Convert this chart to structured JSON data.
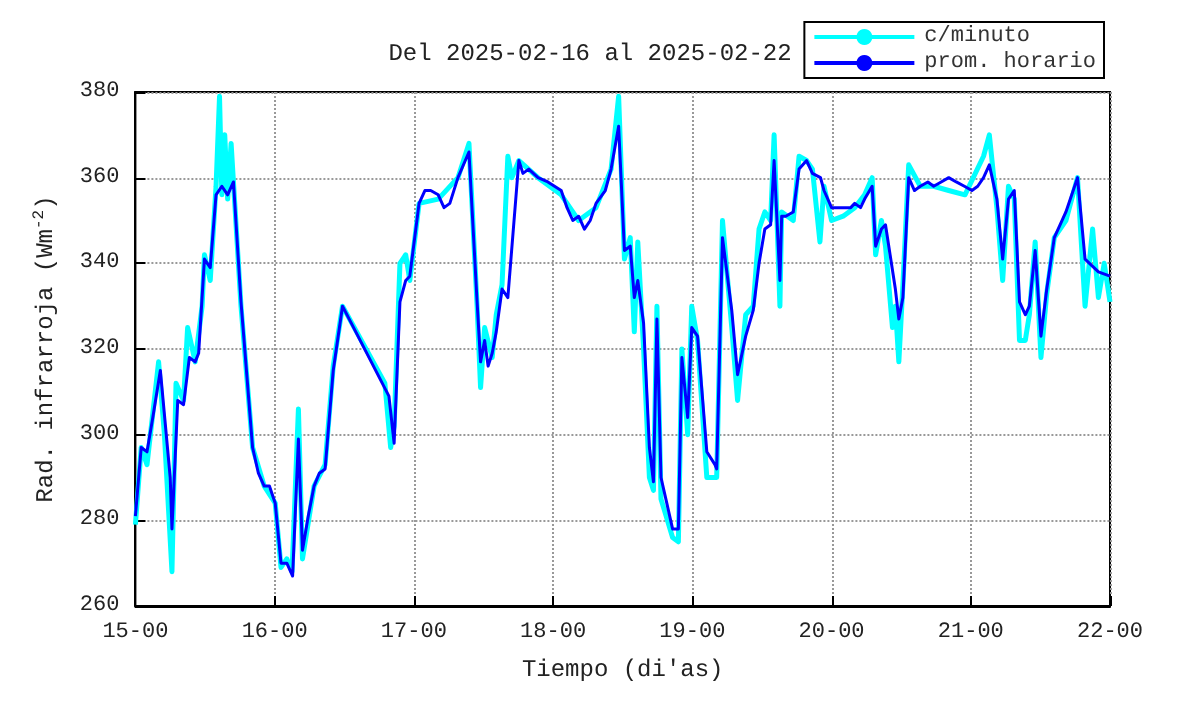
{
  "chart_data": {
    "type": "line",
    "title": "Del 2025-02-16 al 2025-02-22",
    "xlabel": "Tiempo (di'as)",
    "ylabel": "Rad. infrarroja (Wm$^{-2}$)",
    "xlim": [
      "2025-02-15T00:00",
      "2025-02-22T00:00"
    ],
    "xticks": [
      {
        "value": "2025-02-15T00:00",
        "label": "15-00"
      },
      {
        "value": "2025-02-16T00:00",
        "label": "16-00"
      },
      {
        "value": "2025-02-17T00:00",
        "label": "17-00"
      },
      {
        "value": "2025-02-18T00:00",
        "label": "18-00"
      },
      {
        "value": "2025-02-19T00:00",
        "label": "19-00"
      },
      {
        "value": "2025-02-20T00:00",
        "label": "20-00"
      },
      {
        "value": "2025-02-21T00:00",
        "label": "21-00"
      },
      {
        "value": "2025-02-22T00:00",
        "label": "22-00"
      }
    ],
    "ylim": [
      260,
      380
    ],
    "yticks": [
      260,
      280,
      300,
      320,
      340,
      360,
      380
    ],
    "grid": true,
    "legend": "top right",
    "marker": "none",
    "line_style": "solid",
    "series": [
      {
        "name": "c/minuto",
        "color": "#00ffff",
        "x": [
          "2025-02-15T00:00",
          "2025-02-15T01:00",
          "2025-02-15T02:00",
          "2025-02-15T03:00",
          "2025-02-15T04:00",
          "2025-02-15T05:00",
          "2025-02-15T06:18",
          "2025-02-15T07:00",
          "2025-02-15T08:18",
          "2025-02-15T09:00",
          "2025-02-15T10:18",
          "2025-02-15T11:30",
          "2025-02-15T11:54",
          "2025-02-15T12:54",
          "2025-02-15T13:54",
          "2025-02-15T14:30",
          "2025-02-15T14:54",
          "2025-02-15T15:24",
          "2025-02-15T15:54",
          "2025-02-15T16:30",
          "2025-02-15T16:54",
          "2025-02-15T18:12",
          "2025-02-15T20:12",
          "2025-02-15T22:12",
          "2025-02-16T00:06",
          "2025-02-16T01:06",
          "2025-02-16T02:06",
          "2025-02-16T03:00",
          "2025-02-16T04:06",
          "2025-02-16T04:48",
          "2025-02-16T06:48",
          "2025-02-16T08:42",
          "2025-02-16T10:06",
          "2025-02-16T11:42",
          "2025-02-16T19:00",
          "2025-02-16T20:00",
          "2025-02-16T20:36",
          "2025-02-16T21:36",
          "2025-02-16T22:36",
          "2025-02-16T23:18",
          "2025-02-17T00:54",
          "2025-02-17T04:12",
          "2025-02-17T07:36",
          "2025-02-17T09:30",
          "2025-02-17T10:54",
          "2025-02-17T11:30",
          "2025-02-17T12:12",
          "2025-02-17T13:30",
          "2025-02-17T14:12",
          "2025-02-17T15:12",
          "2025-02-17T16:12",
          "2025-02-17T16:54",
          "2025-02-17T18:06",
          "2025-02-17T21:24",
          "2025-02-18T01:24",
          "2025-02-18T04:24",
          "2025-02-18T07:24",
          "2025-02-18T10:00",
          "2025-02-18T11:18",
          "2025-02-18T12:18",
          "2025-02-18T13:18",
          "2025-02-18T14:00",
          "2025-02-18T14:36",
          "2025-02-18T15:36",
          "2025-02-18T16:36",
          "2025-02-18T17:18",
          "2025-02-18T17:54",
          "2025-02-18T18:36",
          "2025-02-18T20:36",
          "2025-02-18T21:36",
          "2025-02-18T22:12",
          "2025-02-18T23:12",
          "2025-02-18T23:54",
          "2025-02-19T00:54",
          "2025-02-19T02:30",
          "2025-02-19T04:12",
          "2025-02-19T05:12",
          "2025-02-19T06:48",
          "2025-02-19T07:48",
          "2025-02-19T09:12",
          "2025-02-19T10:30",
          "2025-02-19T11:30",
          "2025-02-19T12:30",
          "2025-02-19T13:30",
          "2025-02-19T14:06",
          "2025-02-19T15:06",
          "2025-02-19T15:24",
          "2025-02-19T17:24",
          "2025-02-19T18:24",
          "2025-02-19T19:42",
          "2025-02-19T20:42",
          "2025-02-19T22:00",
          "2025-02-19T22:42",
          "2025-02-20T00:00",
          "2025-02-20T02:00",
          "2025-02-20T04:00",
          "2025-02-20T05:42",
          "2025-02-20T07:00",
          "2025-02-20T07:36",
          "2025-02-20T08:36",
          "2025-02-20T09:18",
          "2025-02-20T10:30",
          "2025-02-20T11:00",
          "2025-02-20T11:36",
          "2025-02-20T12:18",
          "2025-02-20T13:18",
          "2025-02-20T15:18",
          "2025-02-20T17:36",
          "2025-02-20T20:12",
          "2025-02-20T23:00",
          "2025-02-21T02:12",
          "2025-02-21T03:12",
          "2025-02-21T04:30",
          "2025-02-21T05:30",
          "2025-02-21T06:30",
          "2025-02-21T07:30",
          "2025-02-21T08:24",
          "2025-02-21T09:24",
          "2025-02-21T10:06",
          "2025-02-21T11:06",
          "2025-02-21T12:06",
          "2025-02-21T13:06",
          "2025-02-21T14:24",
          "2025-02-21T16:24",
          "2025-02-21T18:24",
          "2025-02-21T19:42",
          "2025-02-21T21:00",
          "2025-02-21T22:00",
          "2025-02-21T23:00",
          "2025-02-22T00:00"
        ],
        "values": [
          279,
          297,
          293,
          305,
          317,
          300,
          268,
          312,
          308,
          325,
          317,
          330,
          342,
          336,
          358,
          379,
          356,
          370,
          355,
          368,
          359,
          330,
          297,
          288,
          284,
          269,
          271,
          268,
          306,
          271,
          288,
          293,
          316,
          330,
          312,
          297,
          302,
          340,
          342,
          336,
          354,
          355,
          360,
          368,
          330,
          311,
          325,
          318,
          328,
          335,
          365,
          360,
          364,
          360,
          356,
          350,
          353,
          362,
          379,
          341,
          346,
          324,
          345,
          320,
          290,
          287,
          330,
          285,
          276,
          275,
          320,
          300,
          330,
          322,
          290,
          290,
          350,
          325,
          308,
          328,
          330,
          348,
          352,
          350,
          370,
          330,
          352,
          350,
          365,
          364,
          362,
          345,
          358,
          350,
          351,
          353,
          356,
          360,
          342,
          350,
          344,
          325,
          330,
          317,
          335,
          363,
          358,
          358,
          357,
          356,
          365,
          370,
          353,
          336,
          358,
          355,
          322,
          322,
          328,
          345,
          318,
          333,
          346,
          350,
          360,
          330,
          348,
          332,
          340,
          331
        ]
      },
      {
        "name": "prom. horario",
        "color": "#0000ff",
        "x": [
          "2025-02-15T00:00",
          "2025-02-15T01:00",
          "2025-02-15T02:00",
          "2025-02-15T03:00",
          "2025-02-15T04:18",
          "2025-02-15T06:00",
          "2025-02-15T06:18",
          "2025-02-15T07:18",
          "2025-02-15T08:18",
          "2025-02-15T09:18",
          "2025-02-15T10:18",
          "2025-02-15T10:54",
          "2025-02-15T11:54",
          "2025-02-15T12:54",
          "2025-02-15T13:54",
          "2025-02-15T14:54",
          "2025-02-15T15:54",
          "2025-02-15T16:54",
          "2025-02-15T18:12",
          "2025-02-15T20:12",
          "2025-02-15T21:12",
          "2025-02-15T22:12",
          "2025-02-15T23:06",
          "2025-02-16T00:06",
          "2025-02-16T01:06",
          "2025-02-16T02:06",
          "2025-02-16T03:06",
          "2025-02-16T04:06",
          "2025-02-16T04:48",
          "2025-02-16T05:48",
          "2025-02-16T06:48",
          "2025-02-16T07:42",
          "2025-02-16T08:42",
          "2025-02-16T10:06",
          "2025-02-16T11:42",
          "2025-02-16T19:42",
          "2025-02-16T20:36",
          "2025-02-16T21:36",
          "2025-02-16T22:36",
          "2025-02-16T23:18",
          "2025-02-17T00:54",
          "2025-02-17T01:54",
          "2025-02-17T02:54",
          "2025-02-17T04:12",
          "2025-02-17T05:12",
          "2025-02-17T06:12",
          "2025-02-17T07:36",
          "2025-02-17T09:30",
          "2025-02-17T10:54",
          "2025-02-17T11:30",
          "2025-02-17T12:12",
          "2025-02-17T12:48",
          "2025-02-17T13:30",
          "2025-02-17T14:12",
          "2025-02-17T15:12",
          "2025-02-17T16:12",
          "2025-02-17T18:06",
          "2025-02-17T18:48",
          "2025-02-17T19:48",
          "2025-02-17T21:24",
          "2025-02-17T23:06",
          "2025-02-18T01:24",
          "2025-02-18T02:24",
          "2025-02-18T03:24",
          "2025-02-18T04:24",
          "2025-02-18T05:24",
          "2025-02-18T06:24",
          "2025-02-18T07:24",
          "2025-02-18T09:00",
          "2025-02-18T10:00",
          "2025-02-18T11:18",
          "2025-02-18T12:18",
          "2025-02-18T13:18",
          "2025-02-18T14:00",
          "2025-02-18T14:36",
          "2025-02-18T15:36",
          "2025-02-18T16:36",
          "2025-02-18T17:18",
          "2025-02-18T17:54",
          "2025-02-18T18:36",
          "2025-02-18T19:36",
          "2025-02-18T20:36",
          "2025-02-18T21:36",
          "2025-02-18T22:12",
          "2025-02-18T23:12",
          "2025-02-18T23:54",
          "2025-02-19T00:54",
          "2025-02-19T02:30",
          "2025-02-19T03:54",
          "2025-02-19T04:12",
          "2025-02-19T05:12",
          "2025-02-19T06:48",
          "2025-02-19T07:48",
          "2025-02-19T09:12",
          "2025-02-19T10:30",
          "2025-02-19T11:30",
          "2025-02-19T12:30",
          "2025-02-19T13:30",
          "2025-02-19T14:06",
          "2025-02-19T15:06",
          "2025-02-19T15:24",
          "2025-02-19T16:06",
          "2025-02-19T17:24",
          "2025-02-19T18:24",
          "2025-02-19T19:42",
          "2025-02-19T20:42",
          "2025-02-19T22:06",
          "2025-02-19T22:42",
          "2025-02-20T00:00",
          "2025-02-20T01:00",
          "2025-02-20T02:00",
          "2025-02-20T03:18",
          "2025-02-20T04:00",
          "2025-02-20T05:00",
          "2025-02-20T05:42",
          "2025-02-20T07:00",
          "2025-02-20T07:36",
          "2025-02-20T08:36",
          "2025-02-20T09:18",
          "2025-02-20T11:00",
          "2025-02-20T11:36",
          "2025-02-20T12:18",
          "2025-02-20T13:18",
          "2025-02-20T14:18",
          "2025-02-20T15:18",
          "2025-02-20T16:36",
          "2025-02-20T17:36",
          "2025-02-20T18:54",
          "2025-02-20T20:12",
          "2025-02-20T21:30",
          "2025-02-20T22:54",
          "2025-02-21T00:12",
          "2025-02-21T01:12",
          "2025-02-21T02:12",
          "2025-02-21T03:12",
          "2025-02-21T04:30",
          "2025-02-21T05:30",
          "2025-02-21T06:30",
          "2025-02-21T07:30",
          "2025-02-21T08:24",
          "2025-02-21T09:24",
          "2025-02-21T10:06",
          "2025-02-21T11:06",
          "2025-02-21T12:06",
          "2025-02-21T13:06",
          "2025-02-21T14:24",
          "2025-02-21T16:24",
          "2025-02-21T18:24",
          "2025-02-21T19:42",
          "2025-02-21T22:00",
          "2025-02-22T00:00"
        ],
        "values": [
          281,
          297,
          296,
          304,
          315,
          290,
          278,
          308,
          307,
          318,
          317,
          319,
          341,
          339,
          356,
          358,
          356,
          359,
          331,
          297,
          291,
          288,
          288,
          284,
          270,
          270,
          267,
          299,
          273,
          281,
          288,
          291,
          292,
          315,
          330,
          309,
          298,
          331,
          336,
          337,
          354,
          357,
          357,
          356,
          353,
          354,
          360,
          366,
          331,
          317,
          322,
          316,
          319,
          324,
          334,
          332,
          364,
          361,
          362,
          360,
          359,
          357,
          353,
          350,
          351,
          348,
          350,
          354,
          357,
          362,
          372,
          343,
          344,
          332,
          336,
          326,
          297,
          289,
          327,
          290,
          284,
          278,
          278,
          318,
          304,
          325,
          323,
          296,
          293,
          292,
          346,
          329,
          314,
          323,
          329,
          340,
          348,
          349,
          364,
          336,
          351,
          351,
          352,
          362,
          364,
          361,
          360,
          357,
          353,
          353,
          353,
          353,
          354,
          353,
          355,
          358,
          344,
          348,
          349,
          334,
          327,
          332,
          360,
          357,
          358,
          359,
          358,
          359,
          360,
          359,
          358,
          357,
          358,
          360,
          363,
          355,
          341,
          355,
          357,
          331,
          328,
          330,
          343,
          323,
          334,
          346,
          352,
          360,
          341,
          338,
          337
        ]
      }
    ]
  }
}
